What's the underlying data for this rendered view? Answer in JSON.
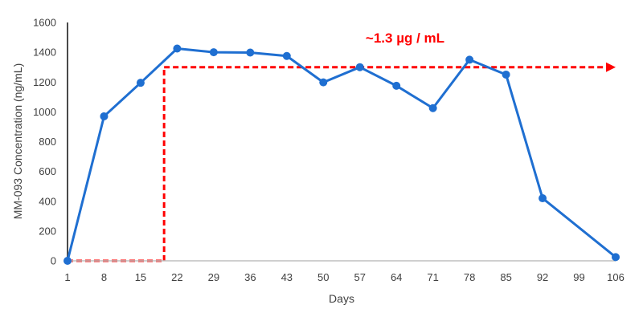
{
  "chart_data": {
    "type": "line",
    "xlabel": "Days",
    "ylabel": "MM-093 Concentration (ng/mL)",
    "x_ticks": [
      "1",
      "8",
      "15",
      "22",
      "29",
      "36",
      "43",
      "50",
      "57",
      "64",
      "71",
      "78",
      "85",
      "92",
      "99",
      "106"
    ],
    "y_ticks": [
      "0",
      "200",
      "400",
      "600",
      "800",
      "1000",
      "1200",
      "1400",
      "1600"
    ],
    "xlim": [
      1,
      106
    ],
    "ylim": [
      0,
      1600
    ],
    "grid": false,
    "legend": "none",
    "series": [
      {
        "x": [
          1,
          8,
          15,
          22,
          29,
          36,
          43,
          50,
          57,
          64,
          71,
          78,
          85,
          92,
          106
        ],
        "values": [
          0,
          970,
          1195,
          1425,
          1400,
          1398,
          1375,
          1198,
          1300,
          1175,
          1025,
          1350,
          1250,
          420,
          25
        ],
        "color": "#1f6fd1"
      }
    ],
    "annotation": {
      "text": "~1.3 µg / mL",
      "color": "#ff0000",
      "level": 1300,
      "start_x": 19.5,
      "end_x": 106
    }
  }
}
